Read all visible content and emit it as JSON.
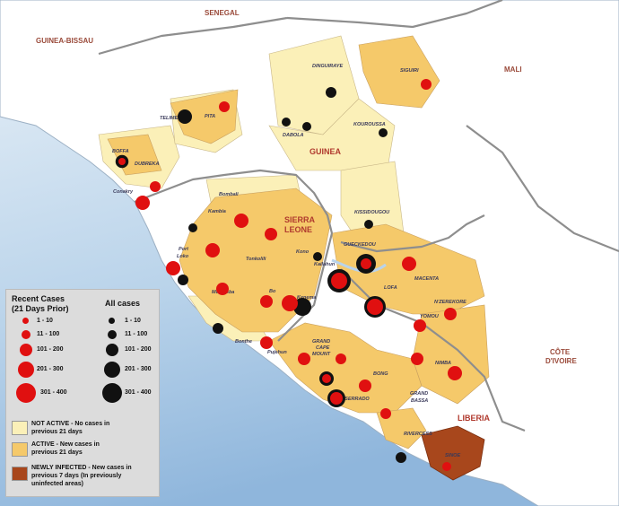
{
  "countries": {
    "senegal": "SENEGAL",
    "guinea_bissau": "GUINEA-BISSAU",
    "mali": "MALI",
    "guinea": "GUINEA",
    "sierra_leone_1": "SIERRA",
    "sierra_leone_2": "LEONE",
    "liberia": "LIBERIA",
    "cote_divoire_1": "CÔTE",
    "cote_divoire_2": "D'IVOIRE"
  },
  "regions": {
    "boffa": "BOFFA",
    "dubreka": "DUBREKA",
    "conakry": "Conakry",
    "telimele": "TELIMELE",
    "pita": "PITA",
    "dinguiraye": "DINGUIRAYE",
    "siguiri": "SIGUIRI",
    "dabola": "DABOLA",
    "kouroussa": "KOUROUSSA",
    "kissidougou": "KISSIDOUGOU",
    "gueckedou": "GUECKEDOU",
    "macenta": "MACENTA",
    "nzerekore": "N'ZEREKORE",
    "yomou": "YOMOU",
    "lofa": "LOFA",
    "bombali": "Bombali",
    "kambia": "Kambia",
    "port_loko_1": "Port",
    "port_loko_2": "Loko",
    "tonkolili": "Tonkolili",
    "kono": "Kono",
    "kenema": "Kenema",
    "moyamba": "Moyamba",
    "bo": "Bo",
    "bonthe": "Bonthe",
    "pujehun": "Pujehun",
    "kailahun": "Kailahun",
    "grand_cape_mount_1": "GRAND",
    "grand_cape_mount_2": "CAPE",
    "grand_cape_mount_3": "MOUNT",
    "bong": "BONG",
    "nimba": "NIMBA",
    "montserrado": "MONTSERRADO",
    "grand_bassa_1": "GRAND",
    "grand_bassa_2": "BASSA",
    "rivercess": "RIVERCESS",
    "sinoe": "SINOE"
  },
  "legend": {
    "recent_title_1": "Recent Cases",
    "recent_title_2": "(21 Days Prior)",
    "all_title": "All cases",
    "bins": [
      "1 - 10",
      "11 - 100",
      "101 - 200",
      "201 - 300",
      "301 - 400"
    ],
    "not_active_1": "NOT ACTIVE - No cases in",
    "not_active_2": "previous 21 days",
    "active_1": "ACTIVE - New cases in",
    "active_2": "previous 21 days",
    "newly_1": "NEWLY INFECTED - New cases in",
    "newly_2": "previous  7 days (In previously",
    "newly_3": "uninfected areas)"
  },
  "colors": {
    "ocean": "#b9d3ea",
    "land": "#ffffff",
    "not_active": "#fbf0b8",
    "active": "#f5c96a",
    "newly_infected": "#a8471c",
    "recent_cases": "#e01010",
    "all_cases": "#111111"
  }
}
